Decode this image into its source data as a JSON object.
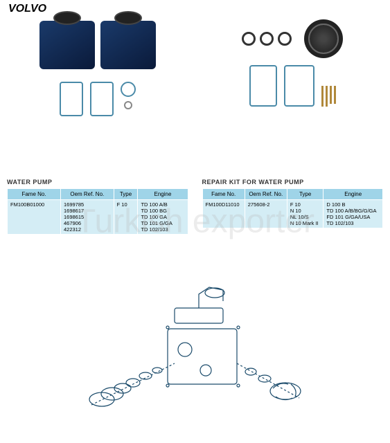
{
  "brand": "VOLVO",
  "watermark": "Turkish exporter",
  "left": {
    "title": "WATER PUMP",
    "headers": [
      "Fame No.",
      "Oem Ref. No.",
      "Type",
      "Engine"
    ],
    "fame_no": "FM100B01000",
    "oem_ref": [
      "1699785",
      "1698617",
      "1698615",
      "467906",
      "422312"
    ],
    "type": [
      "F 10"
    ],
    "engine": [
      "TD 100 A/B",
      "TD 100 BG",
      "TD 100 GA",
      "TD 101 G/GA",
      "TD 102/103"
    ]
  },
  "right": {
    "title": "REPAIR KIT FOR WATER PUMP",
    "headers": [
      "Fame No.",
      "Oem Ref. No.",
      "Type",
      "Engine"
    ],
    "fame_no": "FM100D11010",
    "oem_ref": [
      "275608-2"
    ],
    "type": [
      "F 10",
      "N 10",
      "NL 10/S",
      "N 10 Mark II"
    ],
    "engine": [
      "D 100 B",
      "TD 100 A/B/BG/G/GA",
      "FD 101 G/GA/USA",
      "TD 102/103"
    ]
  },
  "colors": {
    "header_bg": "#9fd4e8",
    "cell_bg": "#d4edf5",
    "pump_dark": "#0a1a3a",
    "pump_light": "#1a3a6a",
    "gasket_line": "#4a8aa8"
  }
}
